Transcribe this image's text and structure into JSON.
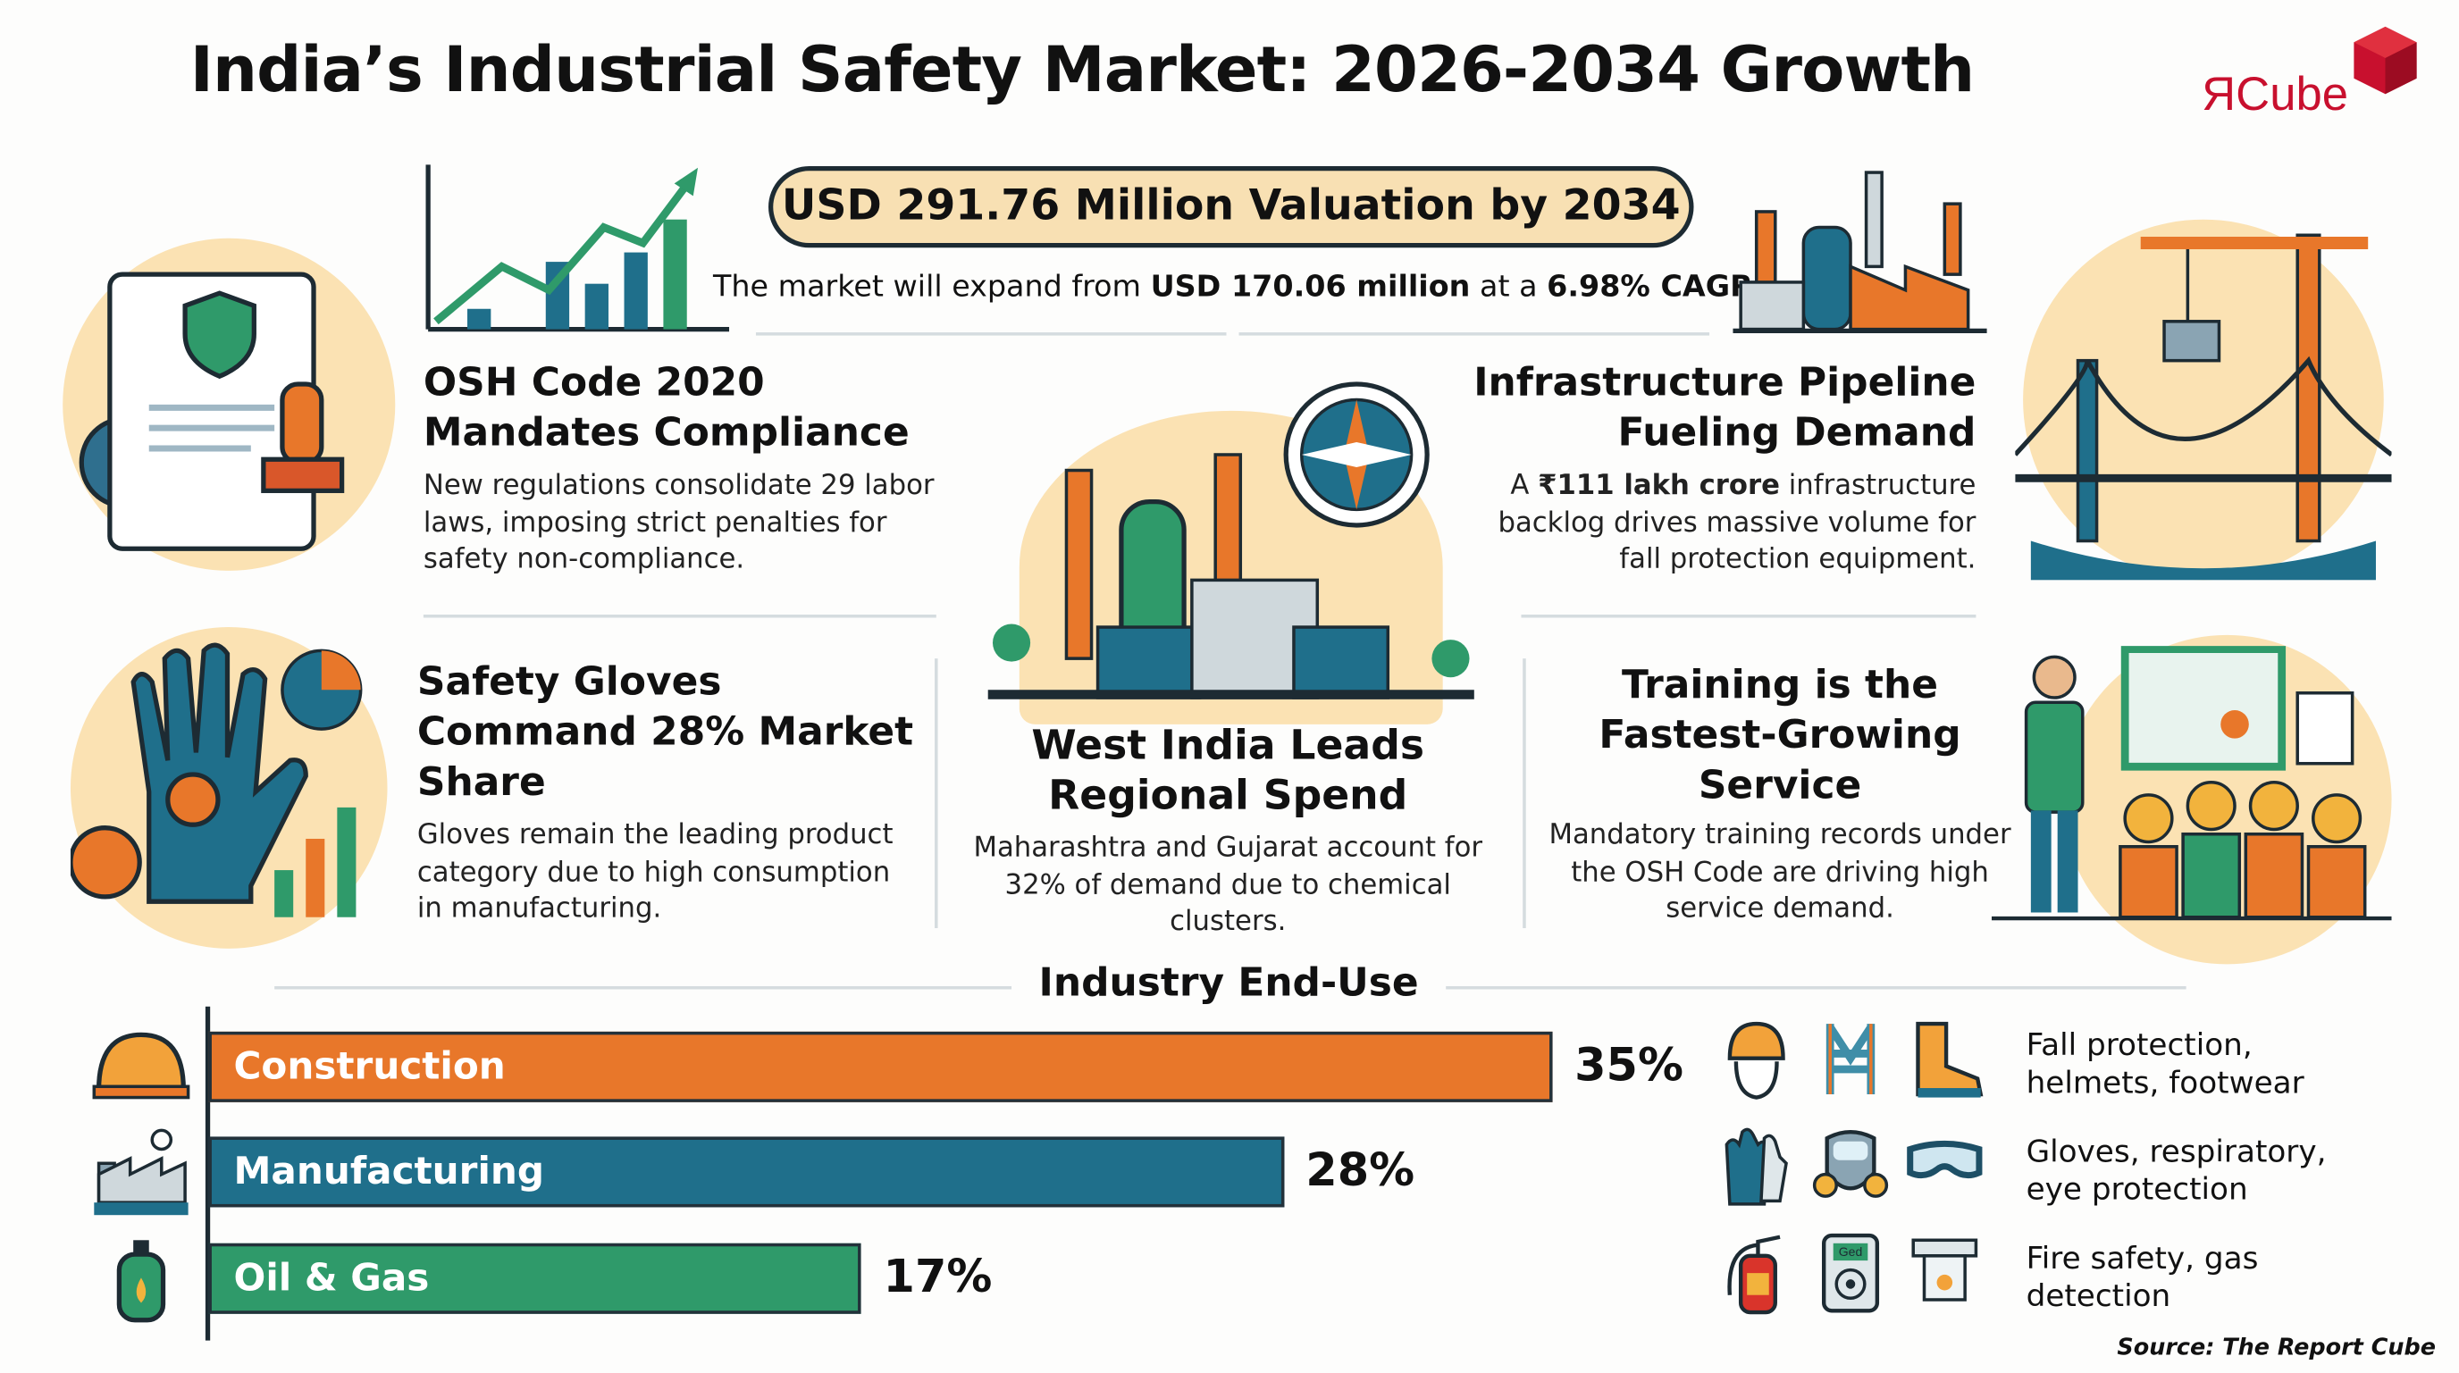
{
  "title": "India’s Industrial Safety Market: 2026-2034 Growth",
  "logo": {
    "text": "ЯCube",
    "brand_color": "#c8102e"
  },
  "headline": {
    "valuation": "USD 291.76 Million Valuation by 2034",
    "sub_pre": "The market will expand from ",
    "sub_b1": "USD 170.06 million",
    "sub_mid": " at a ",
    "sub_b2": "6.98% CAGR."
  },
  "cards": [
    {
      "title": "OSH Code 2020 Mandates Compliance",
      "body": "New regulations consolidate 29 labor laws, imposing strict penalties for safety non-compliance.",
      "icon": "compliance-document-icon"
    },
    {
      "title": "Infrastructure Pipeline Fueling Demand",
      "body_pre": "A ",
      "body_b": "₹111 lakh crore",
      "body_post": " infrastructure backlog drives massive volume for fall protection equipment.",
      "icon": "crane-bridge-icon"
    },
    {
      "title": "Safety Gloves Command 28% Market Share",
      "body": "Gloves remain the leading product category due to high consumption in manufacturing.",
      "icon": "glove-icon"
    },
    {
      "title": "West India Leads Regional Spend",
      "body": "Maharashtra and Gujarat account for 32% of demand due to chemical clusters.",
      "icon": "industrial-plant-icon"
    },
    {
      "title": "Training is the Fastest-Growing Service",
      "body": "Mandatory training records under the OSH Code are driving high service demand.",
      "icon": "training-icon"
    }
  ],
  "chart_data": {
    "type": "bar",
    "orientation": "horizontal",
    "title": "Industry End-Use",
    "categories": [
      "Construction",
      "Manufacturing",
      "Oil & Gas"
    ],
    "values": [
      35,
      28,
      17
    ],
    "labels": [
      "35%",
      "28%",
      "17%"
    ],
    "colors": [
      "#e8772a",
      "#1f6f8b",
      "#2f9a6a"
    ],
    "icons": [
      "hard-hat-icon",
      "factory-icon",
      "gas-cylinder-icon"
    ]
  },
  "ppe": [
    {
      "text": "Fall protection, helmets, footwear",
      "icons": [
        "helmet-icon",
        "harness-icon",
        "boot-icon"
      ]
    },
    {
      "text": "Gloves, respiratory, eye protection",
      "icons": [
        "gloves-icon",
        "respirator-icon",
        "goggles-icon"
      ]
    },
    {
      "text": "Fire safety, gas detection",
      "icons": [
        "fire-extinguisher-icon",
        "gas-detector-icon",
        "smoke-detector-icon"
      ],
      "detector_label": "Ged"
    }
  ],
  "source": "Source: The Report Cube"
}
